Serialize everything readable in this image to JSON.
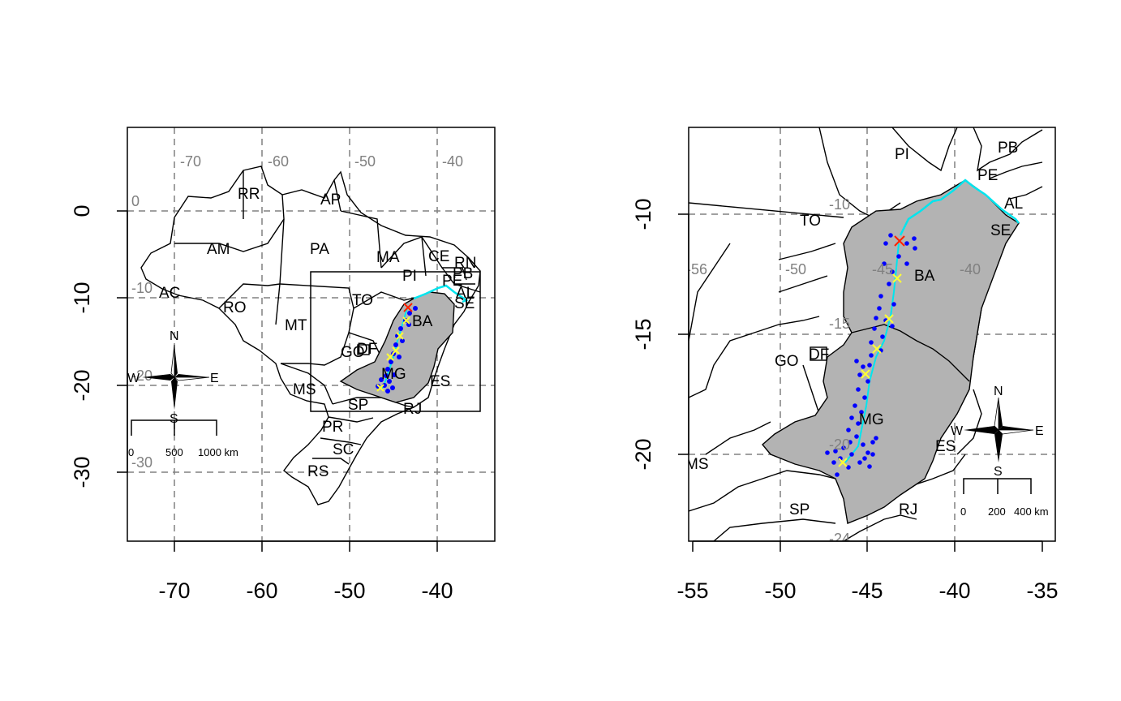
{
  "colors": {
    "region_fill": "#b3b3b3",
    "river": "#00e5ee",
    "points": "#0000ff",
    "start_marker": "#ff2200",
    "waypoint_marker": "#ffff33",
    "grid": "#808080"
  },
  "left_map": {
    "x_ticks": [
      "-70",
      "-60",
      "-50",
      "-40"
    ],
    "y_ticks": [
      "0",
      "-10",
      "-20",
      "-30"
    ],
    "grid_lon_labels": [
      "-70",
      "-60",
      "-50",
      "-40"
    ],
    "grid_lat_labels": [
      "0",
      "-10",
      "-20",
      "-30"
    ],
    "states": [
      "RR",
      "AP",
      "AM",
      "PA",
      "MA",
      "CE",
      "RN",
      "PB",
      "PE",
      "AL",
      "SE",
      "PI",
      "AC",
      "RO",
      "TO",
      "BA",
      "MT",
      "GO",
      "DF",
      "MG",
      "MS",
      "ES",
      "SP",
      "RJ",
      "PR",
      "SC",
      "RS"
    ],
    "compass": {
      "n": "N",
      "s": "S",
      "e": "E",
      "w": "W"
    },
    "scalebar": [
      "0",
      "500",
      "1000 km"
    ]
  },
  "right_map": {
    "x_ticks": [
      "-55",
      "-50",
      "-45",
      "-40",
      "-35"
    ],
    "y_ticks": [
      "-10",
      "-15",
      "-20"
    ],
    "grid_lon_labels": [
      "-56",
      "-50",
      "-45",
      "-40"
    ],
    "grid_lat_labels": [
      "-10",
      "-15",
      "-20",
      "-24"
    ],
    "states": [
      "PI",
      "PB",
      "PE",
      "AL",
      "SE",
      "TO",
      "BA",
      "GO",
      "DF",
      "MG",
      "ES",
      "MS",
      "SP",
      "RJ"
    ],
    "compass": {
      "n": "N",
      "s": "S",
      "e": "E",
      "w": "W"
    },
    "scalebar": [
      "0",
      "200",
      "400 km"
    ]
  }
}
